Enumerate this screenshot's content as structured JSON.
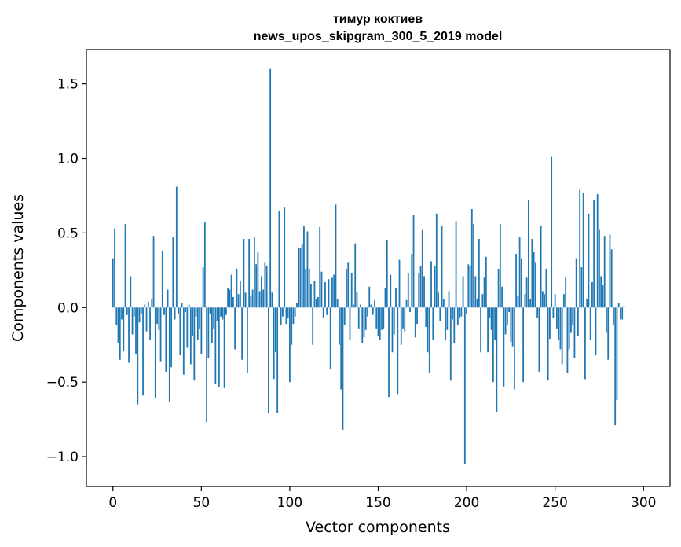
{
  "chart_data": {
    "type": "bar",
    "title_line1": "тимур коктиев",
    "title_line2": "news_upos_skipgram_300_5_2019 model",
    "xlabel": "Vector components",
    "ylabel": "Components values",
    "xlim": [
      -15,
      315
    ],
    "ylim": [
      -1.2,
      1.73
    ],
    "xticks": [
      0,
      50,
      100,
      150,
      200,
      250,
      300
    ],
    "xtick_labels": [
      "0",
      "50",
      "100",
      "150",
      "200",
      "250",
      "300"
    ],
    "yticks": [
      -1.0,
      -0.5,
      0.0,
      0.5,
      1.0,
      1.5
    ],
    "ytick_labels": [
      "−1.0",
      "−0.5",
      "0.0",
      "0.5",
      "1.0",
      "1.5"
    ],
    "bar_color": "#1f77b4",
    "grid": false,
    "x_start": 0,
    "values": [
      0.33,
      0.53,
      -0.12,
      -0.24,
      -0.35,
      -0.08,
      -0.29,
      0.56,
      -0.05,
      -0.37,
      0.21,
      -0.18,
      -0.06,
      -0.31,
      -0.65,
      -0.1,
      -0.04,
      -0.59,
      0.02,
      -0.16,
      0.04,
      -0.22,
      0.06,
      0.48,
      -0.61,
      -0.11,
      -0.15,
      -0.36,
      0.38,
      -0.05,
      -0.43,
      0.12,
      -0.63,
      -0.4,
      0.47,
      -0.08,
      0.81,
      -0.04,
      -0.32,
      0.03,
      -0.45,
      -0.03,
      -0.27,
      0.02,
      -0.38,
      -0.19,
      -0.49,
      -0.06,
      -0.22,
      -0.14,
      -0.31,
      0.27,
      0.57,
      -0.77,
      -0.34,
      -0.04,
      -0.24,
      -0.14,
      -0.51,
      -0.09,
      -0.53,
      -0.06,
      -0.08,
      -0.54,
      -0.05,
      0.13,
      0.12,
      0.22,
      0.07,
      -0.28,
      0.26,
      0.09,
      0.18,
      -0.35,
      0.46,
      0.1,
      -0.44,
      0.46,
      0.08,
      0.12,
      0.47,
      0.29,
      0.37,
      0.11,
      0.21,
      0.12,
      0.3,
      0.28,
      -0.71,
      1.6,
      0.1,
      -0.48,
      -0.3,
      -0.71,
      0.65,
      -0.12,
      -0.06,
      0.67,
      -0.11,
      -0.07,
      -0.5,
      -0.25,
      -0.11,
      -0.06,
      0.03,
      0.4,
      0.4,
      0.43,
      0.55,
      0.26,
      0.51,
      0.26,
      0.16,
      -0.25,
      0.18,
      0.06,
      0.07,
      0.54,
      0.24,
      -0.07,
      0.17,
      -0.05,
      0.19,
      -0.41,
      0.2,
      0.22,
      0.69,
      0.06,
      -0.25,
      -0.55,
      -0.82,
      -0.12,
      0.26,
      0.3,
      -0.22,
      0.23,
      0.02,
      0.43,
      0.1,
      -0.14,
      0.02,
      -0.24,
      -0.2,
      -0.15,
      -0.06,
      0.14,
      0.02,
      -0.05,
      0.05,
      -0.14,
      -0.19,
      -0.22,
      -0.15,
      -0.14,
      0.13,
      0.45,
      -0.6,
      0.22,
      -0.3,
      -0.18,
      0.13,
      -0.58,
      0.32,
      -0.25,
      -0.14,
      -0.16,
      0.05,
      0.23,
      -0.03,
      0.36,
      0.62,
      -0.2,
      -0.11,
      0.23,
      0.28,
      0.52,
      0.21,
      -0.13,
      -0.3,
      -0.44,
      0.31,
      -0.22,
      0.28,
      0.63,
      0.1,
      -0.09,
      0.55,
      0.06,
      -0.22,
      -0.15,
      0.11,
      -0.49,
      -0.08,
      -0.24,
      0.58,
      -0.12,
      -0.07,
      -0.06,
      0.21,
      -1.05,
      -0.04,
      0.29,
      0.28,
      0.66,
      0.56,
      0.21,
      0.06,
      0.46,
      -0.3,
      0.09,
      0.2,
      0.34,
      -0.3,
      -0.07,
      -0.15,
      -0.5,
      -0.22,
      -0.7,
      0.26,
      0.56,
      0.14,
      -0.53,
      -0.18,
      -0.12,
      -0.03,
      -0.23,
      -0.26,
      -0.55,
      0.36,
      0.08,
      0.47,
      0.33,
      -0.5,
      0.09,
      0.2,
      0.72,
      0.06,
      0.46,
      0.37,
      0.3,
      -0.07,
      -0.43,
      0.55,
      0.11,
      0.09,
      0.26,
      -0.49,
      -0.21,
      1.01,
      -0.07,
      0.09,
      -0.14,
      -0.22,
      -0.28,
      -0.38,
      0.09,
      0.2,
      -0.44,
      -0.28,
      -0.17,
      -0.12,
      -0.34,
      0.33,
      -0.19,
      0.79,
      0.27,
      0.77,
      -0.48,
      0.06,
      0.63,
      -0.22,
      0.17,
      0.72,
      -0.32,
      0.76,
      0.52,
      0.21,
      0.15,
      0.48,
      -0.17,
      -0.35,
      0.49,
      0.39,
      -0.12,
      -0.79,
      -0.62,
      0.03,
      -0.08,
      -0.08,
      0.01
    ]
  }
}
